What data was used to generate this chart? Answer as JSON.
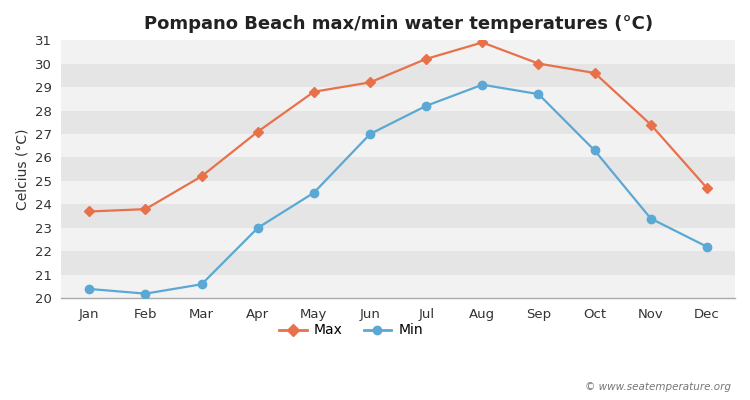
{
  "title": "Pompano Beach max/min water temperatures (°C)",
  "ylabel": "Celcius (°C)",
  "months": [
    "Jan",
    "Feb",
    "Mar",
    "Apr",
    "May",
    "Jun",
    "Jul",
    "Aug",
    "Sep",
    "Oct",
    "Nov",
    "Dec"
  ],
  "max_values": [
    23.7,
    23.8,
    25.2,
    27.1,
    28.8,
    29.2,
    30.2,
    30.9,
    30.0,
    29.6,
    27.4,
    24.7
  ],
  "min_values": [
    20.4,
    20.2,
    20.6,
    23.0,
    24.5,
    27.0,
    28.2,
    29.1,
    28.7,
    26.3,
    23.4,
    22.2
  ],
  "max_color": "#E8714A",
  "min_color": "#5BA8D4",
  "bg_light": "#f2f2f2",
  "bg_dark": "#e5e5e5",
  "ylim_min": 20,
  "ylim_max": 31,
  "yticks": [
    20,
    21,
    22,
    23,
    24,
    25,
    26,
    27,
    28,
    29,
    30,
    31
  ],
  "watermark": "© www.seatemperature.org",
  "legend_max": "Max",
  "legend_min": "Min",
  "title_fontsize": 13,
  "label_fontsize": 10,
  "tick_fontsize": 9.5
}
